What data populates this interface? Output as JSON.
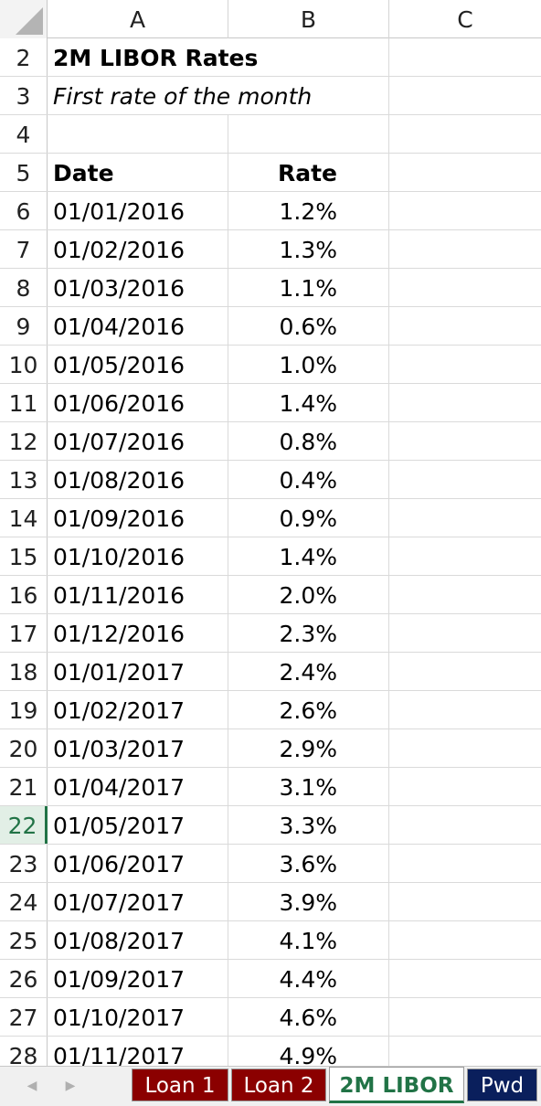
{
  "columns": [
    "A",
    "B",
    "C"
  ],
  "rows": [
    {
      "num": "2",
      "a": "2M LIBOR Rates",
      "b": "",
      "style": "title"
    },
    {
      "num": "3",
      "a": "First rate of the month",
      "b": "",
      "style": "subtitle"
    },
    {
      "num": "4",
      "a": "",
      "b": "",
      "style": "blank"
    },
    {
      "num": "5",
      "a": "Date",
      "b": "Rate",
      "style": "header"
    },
    {
      "num": "6",
      "a": "01/01/2016",
      "b": "1.2%"
    },
    {
      "num": "7",
      "a": "01/02/2016",
      "b": "1.3%"
    },
    {
      "num": "8",
      "a": "01/03/2016",
      "b": "1.1%"
    },
    {
      "num": "9",
      "a": "01/04/2016",
      "b": "0.6%"
    },
    {
      "num": "10",
      "a": "01/05/2016",
      "b": "1.0%"
    },
    {
      "num": "11",
      "a": "01/06/2016",
      "b": "1.4%"
    },
    {
      "num": "12",
      "a": "01/07/2016",
      "b": "0.8%"
    },
    {
      "num": "13",
      "a": "01/08/2016",
      "b": "0.4%"
    },
    {
      "num": "14",
      "a": "01/09/2016",
      "b": "0.9%"
    },
    {
      "num": "15",
      "a": "01/10/2016",
      "b": "1.4%"
    },
    {
      "num": "16",
      "a": "01/11/2016",
      "b": "2.0%"
    },
    {
      "num": "17",
      "a": "01/12/2016",
      "b": "2.3%"
    },
    {
      "num": "18",
      "a": "01/01/2017",
      "b": "2.4%"
    },
    {
      "num": "19",
      "a": "01/02/2017",
      "b": "2.6%"
    },
    {
      "num": "20",
      "a": "01/03/2017",
      "b": "2.9%"
    },
    {
      "num": "21",
      "a": "01/04/2017",
      "b": "3.1%"
    },
    {
      "num": "22",
      "a": "01/05/2017",
      "b": "3.3%",
      "active": true
    },
    {
      "num": "23",
      "a": "01/06/2017",
      "b": "3.6%"
    },
    {
      "num": "24",
      "a": "01/07/2017",
      "b": "3.9%"
    },
    {
      "num": "25",
      "a": "01/08/2017",
      "b": "4.1%"
    },
    {
      "num": "26",
      "a": "01/09/2017",
      "b": "4.4%"
    },
    {
      "num": "27",
      "a": "01/10/2017",
      "b": "4.6%"
    },
    {
      "num": "28",
      "a": "01/11/2017",
      "b": "4.9%"
    }
  ],
  "tabs": [
    {
      "label": "Loan 1",
      "color": "#8b0000",
      "active": false
    },
    {
      "label": "Loan 2",
      "color": "#8b0000",
      "active": false
    },
    {
      "label": "2M LIBOR",
      "color": "#217346",
      "active": true
    },
    {
      "label": "Pwd",
      "color": "#0a1f5c",
      "active": false
    }
  ],
  "nav": {
    "prev_icon": "chevron-left-icon",
    "next_icon": "chevron-right-icon"
  },
  "colors": {
    "active_green": "#217346",
    "tab_red": "#8b0000",
    "tab_blue": "#0a1f5c"
  }
}
